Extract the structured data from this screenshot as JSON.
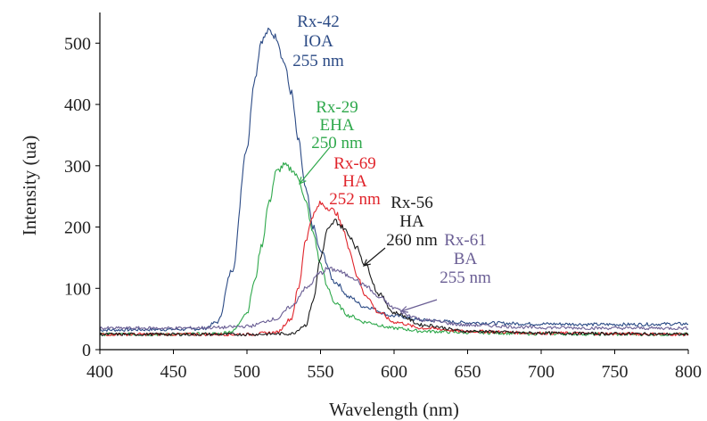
{
  "chart_data": {
    "type": "line",
    "xlabel": "Wavelength (nm)",
    "ylabel": "Intensity (ua)",
    "xlim": [
      400,
      800
    ],
    "ylim": [
      0,
      550
    ],
    "xticks": [
      400,
      450,
      500,
      550,
      600,
      650,
      700,
      750,
      800
    ],
    "yticks": [
      0,
      100,
      200,
      300,
      400,
      500
    ],
    "grid": false,
    "legend": "none",
    "series": [
      {
        "name": "Rx-42 IOA 255 nm",
        "color": "#2b4a85",
        "x": [
          400,
          450,
          470,
          480,
          490,
          500,
          505,
          510,
          515,
          520,
          525,
          530,
          535,
          540,
          545,
          550,
          560,
          570,
          580,
          600,
          620,
          650,
          700,
          750,
          800
        ],
        "y": [
          32,
          33,
          34,
          45,
          130,
          330,
          440,
          505,
          520,
          510,
          470,
          420,
          340,
          260,
          200,
          160,
          110,
          85,
          70,
          55,
          48,
          44,
          42,
          41,
          42
        ]
      },
      {
        "name": "Rx-29 EHA 250 nm",
        "color": "#2ea84b",
        "x": [
          400,
          450,
          480,
          490,
          500,
          505,
          510,
          515,
          520,
          525,
          530,
          535,
          540,
          545,
          550,
          555,
          560,
          570,
          580,
          600,
          620,
          650,
          700,
          750,
          800
        ],
        "y": [
          25,
          25,
          26,
          30,
          60,
          110,
          170,
          240,
          290,
          300,
          295,
          280,
          240,
          190,
          140,
          100,
          75,
          55,
          45,
          35,
          30,
          28,
          26,
          25,
          25
        ]
      },
      {
        "name": "Rx-69 HA 252 nm",
        "color": "#e0242b",
        "x": [
          400,
          450,
          500,
          520,
          530,
          535,
          540,
          545,
          550,
          555,
          560,
          565,
          570,
          575,
          580,
          590,
          600,
          620,
          650,
          700,
          750,
          800
        ],
        "y": [
          25,
          25,
          25,
          28,
          50,
          100,
          180,
          220,
          238,
          232,
          225,
          200,
          160,
          120,
          90,
          60,
          45,
          35,
          30,
          27,
          26,
          25
        ]
      },
      {
        "name": "Rx-56 HA 260 nm",
        "color": "#1a1a1a",
        "x": [
          400,
          450,
          500,
          530,
          540,
          545,
          550,
          555,
          560,
          565,
          570,
          575,
          580,
          590,
          600,
          620,
          650,
          700,
          750,
          800
        ],
        "y": [
          25,
          25,
          25,
          26,
          40,
          80,
          150,
          195,
          210,
          200,
          185,
          165,
          140,
          90,
          60,
          40,
          30,
          27,
          26,
          25
        ]
      },
      {
        "name": "Rx-61 BA 255 nm",
        "color": "#6a5e94",
        "x": [
          400,
          450,
          480,
          500,
          520,
          530,
          540,
          550,
          555,
          560,
          570,
          580,
          590,
          600,
          610,
          620,
          650,
          700,
          750,
          800
        ],
        "y": [
          35,
          35,
          36,
          38,
          50,
          70,
          100,
          125,
          132,
          130,
          120,
          105,
          85,
          68,
          56,
          48,
          40,
          36,
          35,
          35
        ]
      }
    ],
    "annotations": [
      {
        "lines": [
          "Rx-42",
          "IOA",
          "255 nm"
        ],
        "color": "#2b4a85"
      },
      {
        "lines": [
          "Rx-29",
          "EHA",
          "250 nm"
        ],
        "color": "#2ea84b"
      },
      {
        "lines": [
          "Rx-69",
          "HA",
          "252 nm"
        ],
        "color": "#e0242b"
      },
      {
        "lines": [
          "Rx-56",
          "HA",
          "260 nm"
        ],
        "color": "#1a1a1a"
      },
      {
        "lines": [
          "Rx-61",
          "BA",
          "255 nm"
        ],
        "color": "#6a5e94"
      }
    ]
  }
}
